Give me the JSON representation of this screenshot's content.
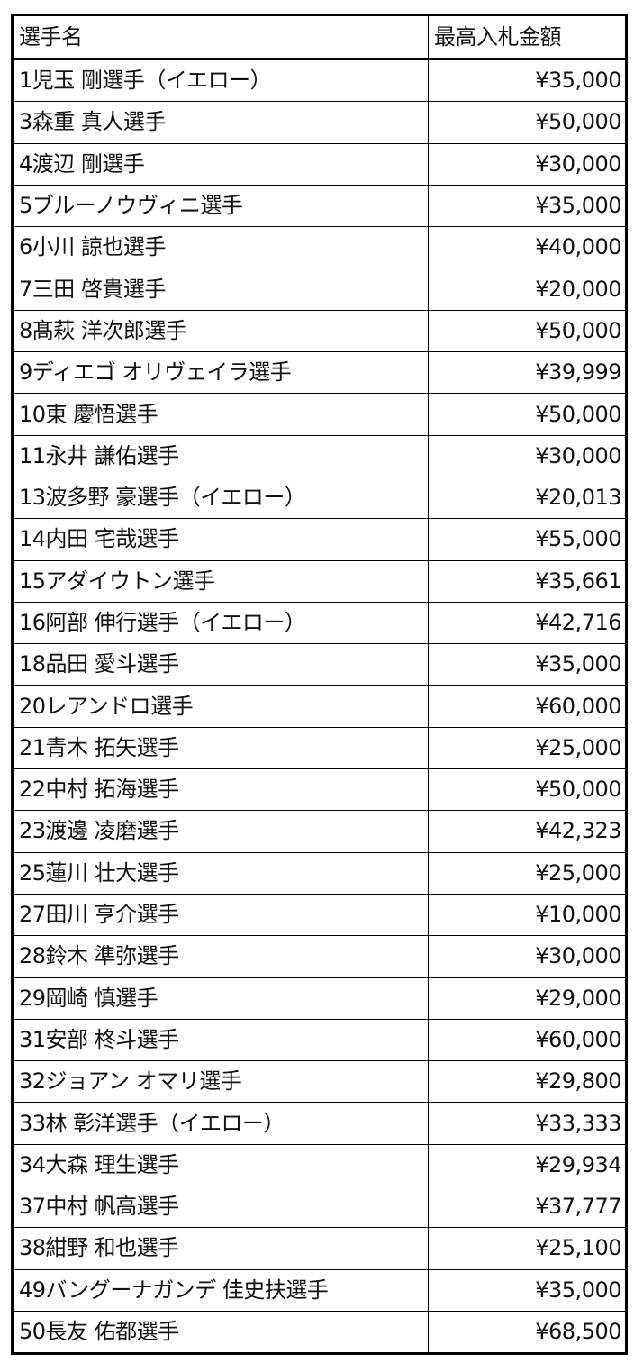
{
  "headers": {
    "name": "選手名",
    "amount": "最高入札金額"
  },
  "rows": [
    {
      "name": "1児玉 剛選手（イエロー）",
      "amount": "¥35,000"
    },
    {
      "name": "3森重 真人選手",
      "amount": "¥50,000"
    },
    {
      "name": "4渡辺 剛選手",
      "amount": "¥30,000"
    },
    {
      "name": "5ブルーノウヴィニ選手",
      "amount": "¥35,000"
    },
    {
      "name": "6小川 諒也選手",
      "amount": "¥40,000"
    },
    {
      "name": "7三田 啓貴選手",
      "amount": "¥20,000"
    },
    {
      "name": "8髙萩 洋次郎選手",
      "amount": "¥50,000"
    },
    {
      "name": "9ディエゴ オリヴェイラ選手",
      "amount": "¥39,999"
    },
    {
      "name": "10東 慶悟選手",
      "amount": "¥50,000"
    },
    {
      "name": "11永井 謙佑選手",
      "amount": "¥30,000"
    },
    {
      "name": "13波多野 豪選手（イエロー）",
      "amount": "¥20,013"
    },
    {
      "name": "14内田 宅哉選手",
      "amount": "¥55,000"
    },
    {
      "name": "15アダイウトン選手",
      "amount": "¥35,661"
    },
    {
      "name": "16阿部 伸行選手（イエロー）",
      "amount": "¥42,716"
    },
    {
      "name": "18品田 愛斗選手",
      "amount": "¥35,000"
    },
    {
      "name": "20レアンドロ選手",
      "amount": "¥60,000"
    },
    {
      "name": "21青木 拓矢選手",
      "amount": "¥25,000"
    },
    {
      "name": "22中村 拓海選手",
      "amount": "¥50,000"
    },
    {
      "name": "23渡邊 凌磨選手",
      "amount": "¥42,323"
    },
    {
      "name": "25蓮川 壮大選手",
      "amount": "¥25,000"
    },
    {
      "name": "27田川 亨介選手",
      "amount": "¥10,000"
    },
    {
      "name": "28鈴木 準弥選手",
      "amount": "¥30,000"
    },
    {
      "name": "29岡崎 慎選手",
      "amount": "¥29,000"
    },
    {
      "name": "31安部 柊斗選手",
      "amount": "¥60,000"
    },
    {
      "name": "32ジョアン オマリ選手",
      "amount": "¥29,800"
    },
    {
      "name": "33林 彰洋選手（イエロー）",
      "amount": "¥33,333"
    },
    {
      "name": "34大森 理生選手",
      "amount": "¥29,934"
    },
    {
      "name": "37中村 帆高選手",
      "amount": "¥37,777"
    },
    {
      "name": "38紺野 和也選手",
      "amount": "¥25,100"
    },
    {
      "name": "49バングーナガンデ 佳史扶選手",
      "amount": "¥35,000"
    },
    {
      "name": "50長友 佑都選手",
      "amount": "¥68,500"
    }
  ]
}
